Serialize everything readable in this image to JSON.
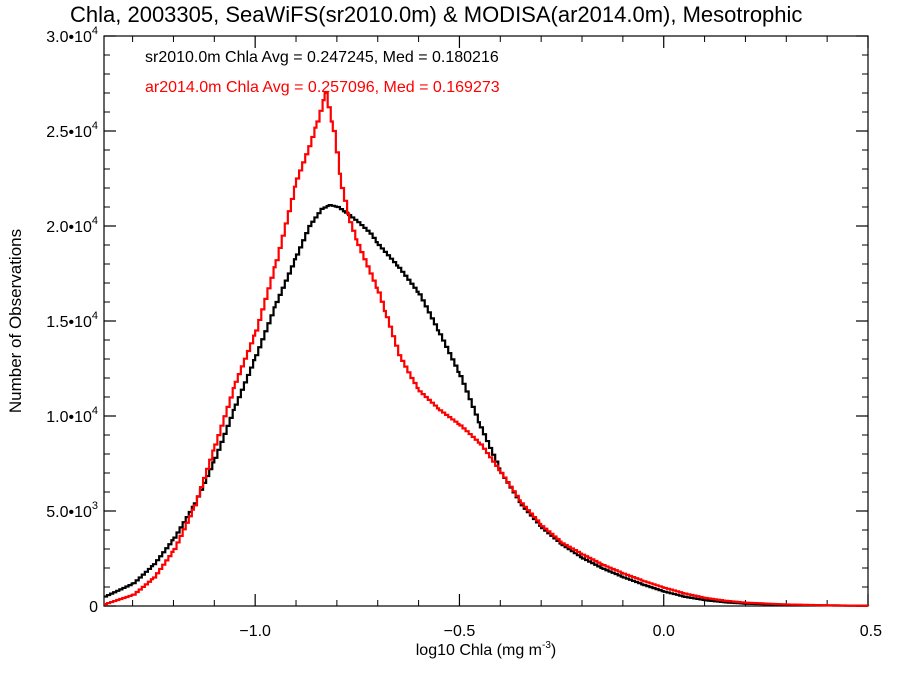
{
  "chart_data": {
    "type": "line",
    "title": "Chla, 2003305, SeaWiFS(sr2010.0m) & MODISA(ar2014.0m), Mesotrophic",
    "xlabel": "log10 Chla (mg m",
    "xlabel_sup": "-3",
    "xlabel_end": ")",
    "ylabel": "Number of Observations",
    "xlim": [
      -1.37,
      0.5
    ],
    "ylim": [
      0,
      30000
    ],
    "x_ticks": [
      {
        "value": -1.0,
        "label": "−1.0"
      },
      {
        "value": -0.5,
        "label": "−0.5"
      },
      {
        "value": 0.0,
        "label": "0.0"
      },
      {
        "value": 0.5,
        "label": "0.5"
      }
    ],
    "y_ticks": [
      {
        "value": 0,
        "mantissa": "0",
        "exp": ""
      },
      {
        "value": 5000,
        "mantissa": "5.0•10",
        "exp": "3"
      },
      {
        "value": 10000,
        "mantissa": "1.0•10",
        "exp": "4"
      },
      {
        "value": 15000,
        "mantissa": "1.5•10",
        "exp": "4"
      },
      {
        "value": 20000,
        "mantissa": "2.0•10",
        "exp": "4"
      },
      {
        "value": 25000,
        "mantissa": "2.5•10",
        "exp": "4"
      },
      {
        "value": 30000,
        "mantissa": "3.0•10",
        "exp": "4"
      }
    ],
    "annotations": [
      {
        "text": "sr2010.0m Chla Avg = 0.247245, Med = 0.180216",
        "color": "#000000"
      },
      {
        "text": "ar2014.0m Chla Avg = 0.257096, Med = 0.169273",
        "color": "#ff0000"
      }
    ],
    "series": [
      {
        "name": "sr2010.0m",
        "color": "#000000",
        "points": [
          [
            -1.37,
            500
          ],
          [
            -1.3,
            1200
          ],
          [
            -1.25,
            2200
          ],
          [
            -1.2,
            3600
          ],
          [
            -1.15,
            5400
          ],
          [
            -1.1,
            7800
          ],
          [
            -1.05,
            10600
          ],
          [
            -1.0,
            13200
          ],
          [
            -0.95,
            16000
          ],
          [
            -0.9,
            18500
          ],
          [
            -0.87,
            20000
          ],
          [
            -0.84,
            20900
          ],
          [
            -0.82,
            21100
          ],
          [
            -0.8,
            21000
          ],
          [
            -0.78,
            20700
          ],
          [
            -0.75,
            20200
          ],
          [
            -0.72,
            19600
          ],
          [
            -0.7,
            19000
          ],
          [
            -0.65,
            17800
          ],
          [
            -0.6,
            16400
          ],
          [
            -0.55,
            14300
          ],
          [
            -0.5,
            12100
          ],
          [
            -0.45,
            9400
          ],
          [
            -0.4,
            7000
          ],
          [
            -0.35,
            5300
          ],
          [
            -0.3,
            4100
          ],
          [
            -0.25,
            3200
          ],
          [
            -0.2,
            2500
          ],
          [
            -0.15,
            1950
          ],
          [
            -0.1,
            1500
          ],
          [
            -0.05,
            1100
          ],
          [
            0.0,
            750
          ],
          [
            0.05,
            480
          ],
          [
            0.1,
            300
          ],
          [
            0.15,
            190
          ],
          [
            0.2,
            120
          ],
          [
            0.3,
            60
          ],
          [
            0.4,
            30
          ],
          [
            0.5,
            10
          ]
        ]
      },
      {
        "name": "ar2014.0m",
        "color": "#ff0000",
        "points": [
          [
            -1.37,
            100
          ],
          [
            -1.3,
            600
          ],
          [
            -1.25,
            1500
          ],
          [
            -1.2,
            3000
          ],
          [
            -1.15,
            5300
          ],
          [
            -1.1,
            8500
          ],
          [
            -1.05,
            11800
          ],
          [
            -1.0,
            14500
          ],
          [
            -0.95,
            18200
          ],
          [
            -0.9,
            22500
          ],
          [
            -0.87,
            24200
          ],
          [
            -0.85,
            25500
          ],
          [
            -0.83,
            27000
          ],
          [
            -0.81,
            25000
          ],
          [
            -0.79,
            22000
          ],
          [
            -0.77,
            20200
          ],
          [
            -0.75,
            19000
          ],
          [
            -0.72,
            17500
          ],
          [
            -0.7,
            16500
          ],
          [
            -0.68,
            15200
          ],
          [
            -0.65,
            13200
          ],
          [
            -0.62,
            12000
          ],
          [
            -0.6,
            11300
          ],
          [
            -0.55,
            10300
          ],
          [
            -0.5,
            9500
          ],
          [
            -0.45,
            8500
          ],
          [
            -0.4,
            7000
          ],
          [
            -0.35,
            5400
          ],
          [
            -0.3,
            4200
          ],
          [
            -0.25,
            3300
          ],
          [
            -0.2,
            2700
          ],
          [
            -0.15,
            2150
          ],
          [
            -0.1,
            1700
          ],
          [
            -0.05,
            1300
          ],
          [
            0.0,
            950
          ],
          [
            0.05,
            650
          ],
          [
            0.1,
            420
          ],
          [
            0.15,
            270
          ],
          [
            0.2,
            170
          ],
          [
            0.3,
            80
          ],
          [
            0.4,
            35
          ],
          [
            0.5,
            10
          ]
        ]
      }
    ]
  }
}
